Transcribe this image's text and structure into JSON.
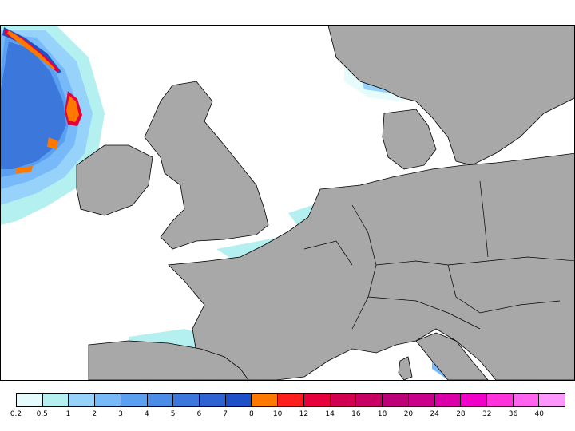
{
  "legend": {
    "ticks": [
      "0.2",
      "0.5",
      "1",
      "2",
      "3",
      "4",
      "5",
      "6",
      "7",
      "8",
      "10",
      "12",
      "14",
      "16",
      "18",
      "20",
      "24",
      "28",
      "32",
      "36",
      "40"
    ],
    "colors": [
      "#e6fcfc",
      "#b4f0f0",
      "#96d2fa",
      "#78b9fa",
      "#5aa0f0",
      "#4b8ce6",
      "#3c78dc",
      "#2d64d2",
      "#1e50c8",
      "#ff7800",
      "#ff1e1e",
      "#e6003c",
      "#d20050",
      "#c80064",
      "#be0078",
      "#c8008c",
      "#dc00aa",
      "#f000c8",
      "#ff32dc",
      "#ff64f0",
      "#ff96ff"
    ]
  },
  "map": {
    "land_color": "#a8a8a8",
    "sea_color": "#ffffff",
    "border_color": "#000000"
  }
}
